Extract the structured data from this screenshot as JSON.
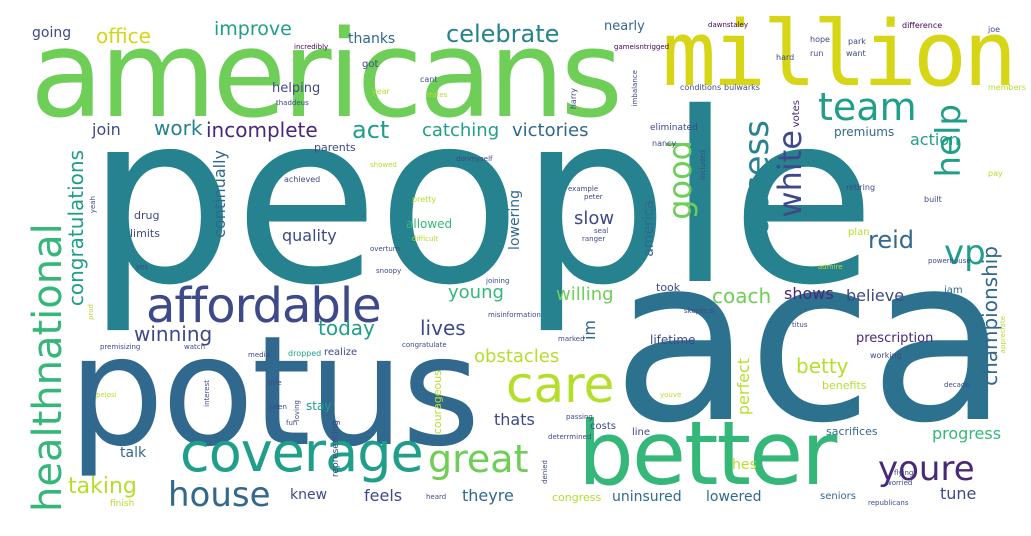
{
  "words": {
    "people": "people",
    "aca": "aca",
    "potus": "potus",
    "americans": "americans",
    "million": "million",
    "better": "better",
    "coverage": "coverage",
    "affordable": "affordable",
    "care": "care",
    "great": "great",
    "house": "house",
    "healthnational": "healthnational",
    "youre": "youre",
    "team": "team",
    "good": "good",
    "access": "access",
    "white": "white",
    "help": "help",
    "vp": "vp",
    "celebrate": "celebrate",
    "office": "office",
    "improve": "improve",
    "going": "going",
    "thanks": "thanks",
    "join": "join",
    "work": "work",
    "incomplete": "incomplete",
    "act": "act",
    "catching": "catching",
    "victories": "victories",
    "congratulations": "congratulations",
    "continually": "continually",
    "quality": "quality",
    "reid": "reid",
    "young": "young",
    "willing": "willing",
    "coach": "coach",
    "shows": "shows",
    "believe": "believe",
    "championship": "championship",
    "winning": "winning",
    "today": "today",
    "lives": "lives",
    "obstacles": "obstacles",
    "betty": "betty",
    "taking": "taking",
    "talk": "talk",
    "knew": "knew",
    "feels": "feels",
    "theyre": "theyre",
    "uninsured": "uninsured",
    "lowered": "lowered",
    "tune": "tune",
    "progress": "progress",
    "sacrifices": "sacrifices",
    "thats": "thats",
    "perfect": "perfect",
    "lowering": "lowering",
    "america": "america",
    "slow": "slow",
    "nearly": "nearly",
    "action": "action",
    "premiums": "premiums",
    "prescription": "prescription",
    "hes": "hes",
    "helping": "helping",
    "eliminated": "eliminated",
    "lifetime": "lifetime",
    "parents": "parents",
    "limits": "limits",
    "drug": "drug",
    "allowed": "allowed",
    "took": "took",
    "im": "im",
    "stay": "stay",
    "benefits": "benefits",
    "seniors": "seniors",
    "costs": "costs",
    "line": "line",
    "congress": "congress",
    "votes": "votes",
    "plan": "plan",
    "courageous": "courageous",
    "representing": "representing",
    "realize": "realize",
    "finish": "finish",
    "dropped": "dropped",
    "jam": "jam",
    "got": "got",
    "incredibly": "incredibly",
    "gameisntrigged": "gameisntrigged",
    "dawnstaley": "dawnstaley",
    "hope": "hope",
    "park": "park",
    "difference": "difference",
    "hard": "hard",
    "run": "run",
    "want": "want",
    "joe": "joe",
    "cant": "cant",
    "conditions": "conditions",
    "bulwarks": "bulwarks",
    "harry": "harry",
    "imbalance": "imbalance",
    "members": "members",
    "thaddeus": "thaddeus",
    "year": "year",
    "states": "states",
    "nancy": "nancy",
    "included": "included",
    "achieved": "achieved",
    "showed": "showed",
    "donmyself": "donmyself",
    "pretty": "pretty",
    "retiring": "retiring",
    "built": "built",
    "pay": "pay",
    "example": "example",
    "peter": "peter",
    "seal": "seal",
    "ranger": "ranger",
    "yeah": "yeah",
    "yes": "yes",
    "difficult": "difficult",
    "overturn": "overturn",
    "snoopy": "snoopy",
    "joining": "joining",
    "misinformation": "misinformation",
    "skeptical": "skeptical",
    "marked": "marked",
    "titus": "titus",
    "media": "media",
    "prod": "prod",
    "powerhouse": "powerhouse",
    "admire": "admire",
    "appreciate": "appreciate",
    "working": "working",
    "congratulate": "congratulate",
    "youve": "youve",
    "decade": "decade",
    "passing": "passing",
    "deterrmined": "deterrmined",
    "flying": "flying",
    "worried": "worried",
    "republicans": "republicans",
    "heard": "heard",
    "denied": "denied",
    "fun": "fun",
    "jalen": "jalen",
    "pelosi": "pelosi",
    "interest": "interest",
    "loving": "loving",
    "title": "title",
    "watch": "watch",
    "premisizing": "premisizing",
    "prez": "prez",
    "finding": "finding",
    "spoken": "spoken"
  },
  "colors": {
    "deep_purple": "#440154",
    "purple": "#482878",
    "indigo": "#3e4989",
    "slate_blue": "#31688e",
    "steel_blue": "#26828e",
    "teal": "#1f9e89",
    "green_teal": "#35b779",
    "green": "#6ece58",
    "lime": "#b5de2b",
    "yellow": "#d6d516"
  }
}
